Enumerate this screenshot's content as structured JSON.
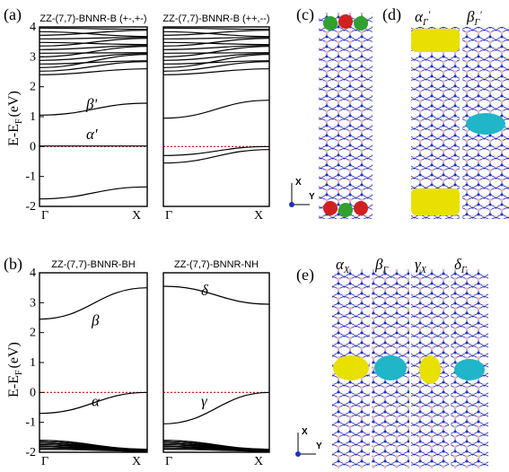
{
  "figure": {
    "panels": {
      "a": {
        "label": "(a)"
      },
      "b": {
        "label": "(b)"
      },
      "c": {
        "label": "(c)"
      },
      "d": {
        "label": "(d)",
        "orbitals": [
          "α",
          "Γ",
          "'",
          "β",
          "Γ",
          "'"
        ]
      },
      "e": {
        "label": "(e)",
        "orbitals": [
          "α",
          "X",
          "β",
          "Γ",
          "γ",
          "X",
          "δ",
          "Γ"
        ]
      }
    },
    "axes_label": "E-E",
    "axes_label_sub": "F",
    "axes_label_unit": "(eV)",
    "axis_dirs": {
      "x": "X",
      "y": "Y"
    },
    "colors": {
      "ef_line": "#cc0000",
      "yellow": "#e8e000",
      "cyan": "#20b5c8",
      "red": "#d02020",
      "green": "#30a030",
      "boron": "#f0b8b8",
      "nitrogen": "#2030c0"
    }
  },
  "chart_data": [
    {
      "type": "line",
      "title": "ZZ-(7,7)-BNNR-B (+-,+-)",
      "xlabel": "",
      "ylabel": "E-EF (eV)",
      "categories": [
        "Γ",
        "X"
      ],
      "ylim": [
        -2,
        4
      ],
      "yticks": [
        "4",
        "3",
        "2",
        "1",
        "0",
        "-1",
        "-2"
      ],
      "annotations": [
        "β'",
        "α'"
      ],
      "series": [
        {
          "values": [
            0.02,
            0.02
          ]
        },
        {
          "values": [
            1.05,
            1.45
          ]
        },
        {
          "values": [
            -1.75,
            -1.35
          ]
        }
      ]
    },
    {
      "type": "line",
      "title": "ZZ-(7,7)-BNNR-B (++,--)",
      "xlabel": "",
      "ylabel": "",
      "categories": [
        "Γ",
        "X"
      ],
      "ylim": [
        -2,
        4
      ],
      "yticks": [],
      "annotations": [],
      "series": [
        {
          "values": [
            -0.3,
            0.0
          ]
        },
        {
          "values": [
            -0.55,
            -0.1
          ]
        },
        {
          "values": [
            0.95,
            1.55
          ]
        }
      ]
    },
    {
      "type": "line",
      "title": "ZZ-(7,7)-BNNR-BH",
      "xlabel": "",
      "ylabel": "E-EF (eV)",
      "categories": [
        "Γ",
        "X"
      ],
      "ylim": [
        -2,
        4
      ],
      "yticks": [
        "4",
        "3",
        "2",
        "1",
        "0",
        "-1",
        "-2"
      ],
      "annotations": [
        "β",
        "α"
      ],
      "series": [
        {
          "values": [
            2.45,
            3.5
          ]
        },
        {
          "values": [
            -0.7,
            0.0
          ]
        }
      ]
    },
    {
      "type": "line",
      "title": "ZZ-(7,7)-BNNR-NH",
      "xlabel": "",
      "ylabel": "",
      "categories": [
        "Γ",
        "X"
      ],
      "ylim": [
        -2,
        4
      ],
      "yticks": [],
      "annotations": [
        "δ",
        "γ"
      ],
      "series": [
        {
          "values": [
            3.55,
            2.95
          ]
        },
        {
          "values": [
            -1.05,
            0.0
          ]
        }
      ]
    }
  ]
}
